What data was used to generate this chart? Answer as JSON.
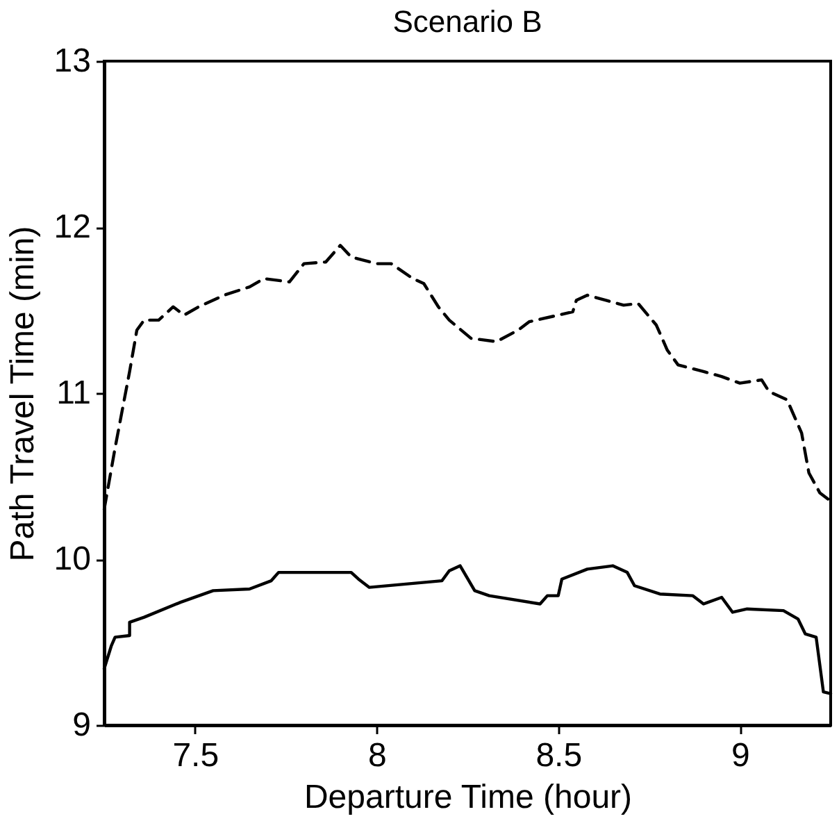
{
  "chart_data": {
    "type": "line",
    "title": "Scenario B",
    "xlabel": "Departure Time (hour)",
    "ylabel": "Path Travel Time (min)",
    "xlim": [
      7.25,
      9.25
    ],
    "xticks": [
      7.5,
      8,
      8.5,
      9
    ],
    "ylim": [
      9,
      13
    ],
    "yticks": [
      9,
      10,
      11,
      12,
      13
    ],
    "grid": false,
    "series": [
      {
        "color": "#000000",
        "line_style": "dashed",
        "x": [
          7.25,
          7.28,
          7.32,
          7.34,
          7.36,
          7.4,
          7.44,
          7.47,
          7.51,
          7.58,
          7.65,
          7.69,
          7.76,
          7.8,
          7.86,
          7.9,
          7.93,
          8.0,
          8.04,
          8.1,
          8.13,
          8.17,
          8.2,
          8.26,
          8.33,
          8.39,
          8.42,
          8.5,
          8.54,
          8.55,
          8.58,
          8.63,
          8.68,
          8.72,
          8.77,
          8.8,
          8.83,
          8.9,
          8.95,
          9.0,
          9.06,
          9.08,
          9.13,
          9.17,
          9.19,
          9.22,
          9.25
        ],
        "values": [
          10.3,
          10.67,
          11.13,
          11.38,
          11.44,
          11.44,
          11.52,
          11.47,
          11.52,
          11.59,
          11.64,
          11.69,
          11.67,
          11.78,
          11.79,
          11.89,
          11.82,
          11.78,
          11.78,
          11.69,
          11.66,
          11.52,
          11.44,
          11.33,
          11.31,
          11.38,
          11.43,
          11.47,
          11.49,
          11.56,
          11.59,
          11.56,
          11.53,
          11.54,
          11.41,
          11.26,
          11.17,
          11.13,
          11.1,
          11.06,
          11.08,
          11.01,
          10.96,
          10.76,
          10.52,
          10.4,
          10.35
        ]
      },
      {
        "color": "#000000",
        "line_style": "solid",
        "x": [
          7.25,
          7.27,
          7.28,
          7.32,
          7.32,
          7.36,
          7.46,
          7.55,
          7.65,
          7.71,
          7.73,
          7.93,
          7.95,
          7.98,
          8.18,
          8.2,
          8.23,
          8.27,
          8.31,
          8.45,
          8.47,
          8.5,
          8.51,
          8.58,
          8.65,
          8.69,
          8.71,
          8.78,
          8.87,
          8.9,
          8.95,
          8.98,
          9.02,
          9.12,
          9.16,
          9.18,
          9.21,
          9.23,
          9.25
        ],
        "values": [
          9.34,
          9.48,
          9.53,
          9.54,
          9.62,
          9.65,
          9.74,
          9.81,
          9.82,
          9.87,
          9.92,
          9.92,
          9.88,
          9.83,
          9.87,
          9.93,
          9.96,
          9.81,
          9.78,
          9.73,
          9.78,
          9.78,
          9.88,
          9.94,
          9.96,
          9.92,
          9.84,
          9.79,
          9.78,
          9.73,
          9.77,
          9.68,
          9.7,
          9.69,
          9.64,
          9.55,
          9.53,
          9.2,
          9.19
        ]
      }
    ]
  }
}
